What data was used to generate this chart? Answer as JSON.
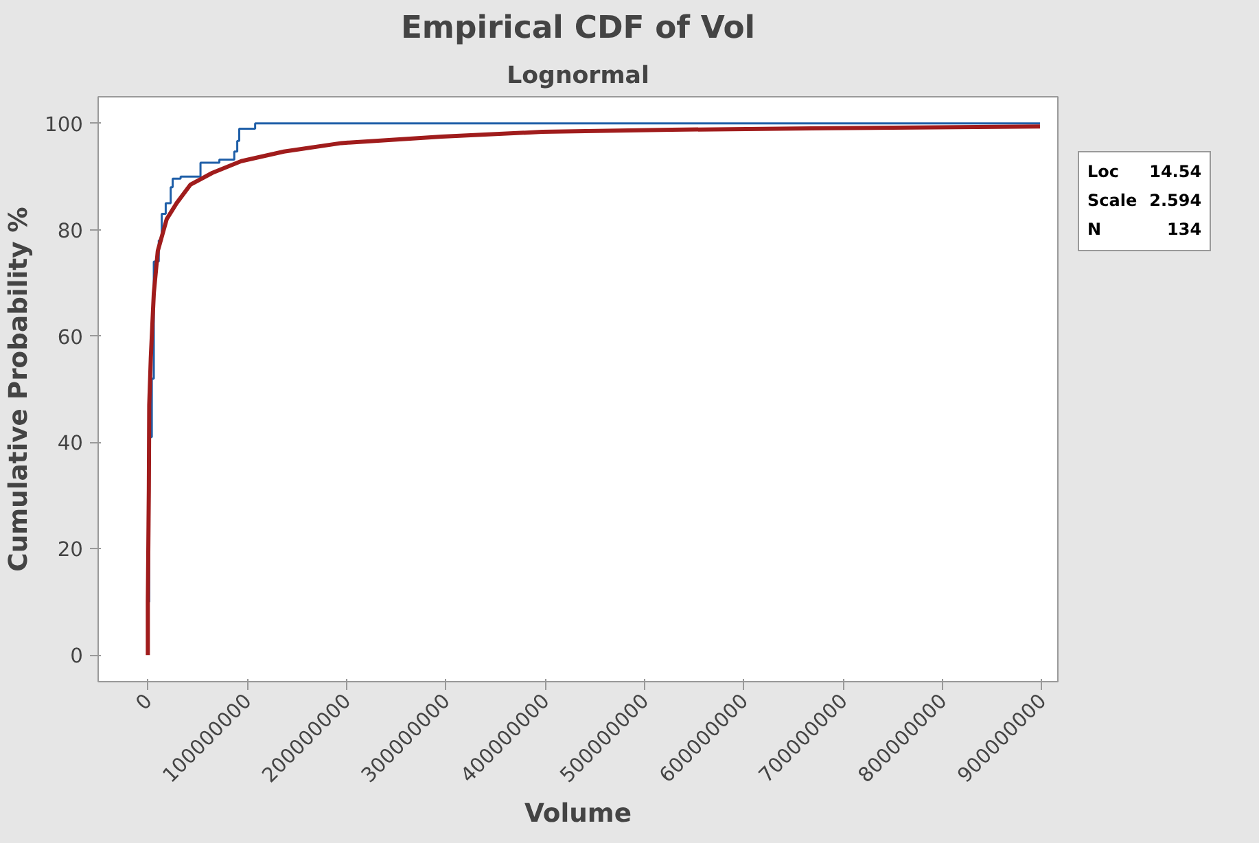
{
  "chart_data": {
    "type": "line",
    "title": "Empirical CDF of Vol",
    "subtitle": "Lognormal",
    "xlabel": "Volume",
    "ylabel": "Cumulative Probability %",
    "xlim": [
      -50000000,
      916000000
    ],
    "ylim": [
      -5,
      105
    ],
    "xticks": [
      0,
      100000000,
      200000000,
      300000000,
      400000000,
      500000000,
      600000000,
      700000000,
      800000000,
      900000000
    ],
    "yticks": [
      0,
      20,
      40,
      60,
      80,
      100
    ],
    "grid": false,
    "annotations": [
      "Loc 14.54",
      "Scale 2.594",
      "N 134"
    ],
    "series": [
      {
        "type": "step",
        "color": "#1f5fa8",
        "x": [
          0,
          1400000,
          4000000,
          6000000,
          11000000,
          14000000,
          18000000,
          23000000,
          25000000,
          33000000,
          53000000,
          72000000,
          87000000,
          90000000,
          92000000,
          108000000,
          898000000
        ],
        "values": [
          10,
          41,
          52,
          74,
          78,
          83,
          85,
          88,
          89.6,
          90,
          92.6,
          93.2,
          94.7,
          96.7,
          99,
          100,
          100
        ]
      },
      {
        "color": "#a01c1c",
        "x": [
          0,
          0,
          1000000,
          1400000,
          3000000,
          6000000,
          10000000,
          19000000,
          29000000,
          43000000,
          65000000,
          94000000,
          137000000,
          195000000,
          296000000,
          397000000,
          527000000,
          685000000,
          898000000
        ],
        "values": [
          0,
          10,
          31,
          47,
          56,
          68,
          76,
          82,
          85,
          88.5,
          90.7,
          92.9,
          94.7,
          96.3,
          97.5,
          98.4,
          98.8,
          99.1,
          99.4
        ]
      }
    ]
  }
}
